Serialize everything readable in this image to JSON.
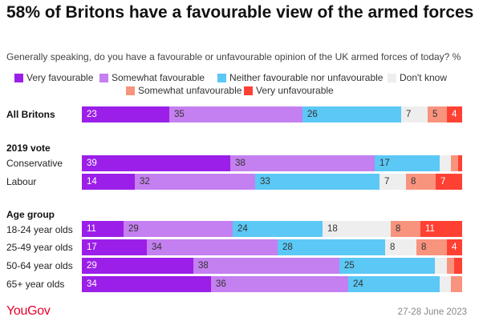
{
  "title": "58% of Britons have a favourable view of the armed forces",
  "subtitle": "Generally speaking, do you have a favourable or unfavourable opinion of the UK armed forces of today? %",
  "source": "YouGov",
  "date": "27-28 June 2023",
  "groups": {
    "vote": "2019 vote",
    "age": "Age group"
  },
  "chart_data": {
    "type": "bar",
    "stacked": true,
    "orientation": "horizontal",
    "xlim": [
      0,
      100
    ],
    "legend_placement": "top",
    "series": [
      {
        "name": "Very favourable",
        "color": "#9b1fe8"
      },
      {
        "name": "Somewhat favourable",
        "color": "#c47ff0"
      },
      {
        "name": "Neither favourable nor unfavourable",
        "color": "#5bc8f5"
      },
      {
        "name": "Don't know",
        "color": "#eeeeee"
      },
      {
        "name": "Somewhat unfavourable",
        "color": "#f8937e"
      },
      {
        "name": "Very unfavourable",
        "color": "#ff4133"
      }
    ],
    "rows": [
      {
        "label": "All Britons",
        "bold": true,
        "values": [
          23,
          35,
          26,
          7,
          5,
          4
        ],
        "labels": [
          "23",
          "35",
          "26",
          "7",
          "5",
          "4"
        ]
      },
      {
        "label": "Conservative",
        "bold": false,
        "values": [
          39,
          38,
          17,
          3,
          2,
          1
        ],
        "labels": [
          "39",
          "38",
          "17",
          "",
          "",
          ""
        ]
      },
      {
        "label": "Labour",
        "bold": false,
        "values": [
          14,
          32,
          33,
          7,
          8,
          7
        ],
        "labels": [
          "14",
          "32",
          "33",
          "7",
          "8",
          "7"
        ]
      },
      {
        "label": "18-24 year olds",
        "bold": false,
        "values": [
          11,
          29,
          24,
          18,
          8,
          11
        ],
        "labels": [
          "11",
          "29",
          "24",
          "18",
          "8",
          "11"
        ]
      },
      {
        "label": "25-49 year olds",
        "bold": false,
        "values": [
          17,
          34,
          28,
          8,
          8,
          4
        ],
        "labels": [
          "17",
          "34",
          "28",
          "8",
          "8",
          "4"
        ]
      },
      {
        "label": "50-64 year olds",
        "bold": false,
        "values": [
          29,
          38,
          25,
          3,
          2,
          2
        ],
        "labels": [
          "29",
          "38",
          "25",
          "",
          "",
          ""
        ]
      },
      {
        "label": "65+ year olds",
        "bold": false,
        "values": [
          34,
          36,
          24,
          3,
          3,
          0
        ],
        "labels": [
          "34",
          "36",
          "24",
          "",
          "",
          ""
        ]
      }
    ]
  }
}
